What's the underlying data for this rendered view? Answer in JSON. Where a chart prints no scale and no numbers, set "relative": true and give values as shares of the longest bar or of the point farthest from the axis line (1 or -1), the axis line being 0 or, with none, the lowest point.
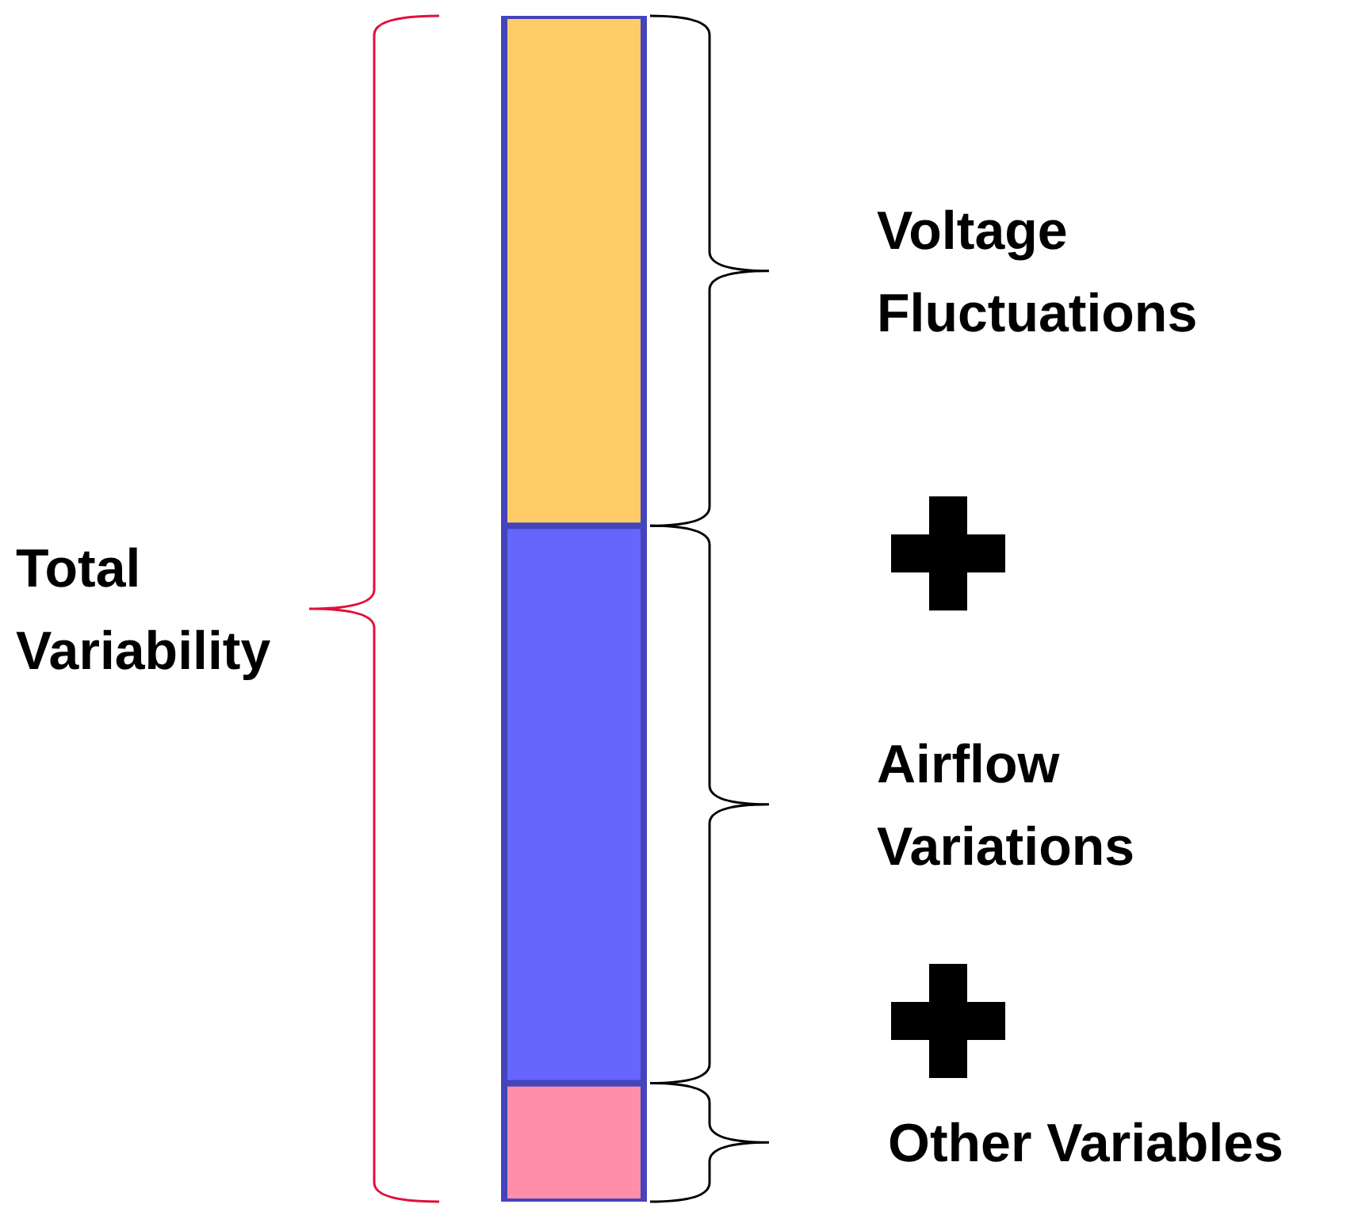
{
  "chart_data": {
    "type": "bar",
    "stacked": true,
    "relative": true,
    "categories": [
      null
    ],
    "series": [
      {
        "name": "Other Variables",
        "color": "#ff8fa8",
        "values": [
          0.1
        ]
      },
      {
        "name": "Airflow Variations",
        "color": "#6666ff",
        "values": [
          0.47
        ]
      },
      {
        "name": "Voltage Fluctuations",
        "color": "#ffcc66",
        "values": [
          0.43
        ]
      }
    ],
    "annotations": [
      "Total Variability"
    ]
  }
}
